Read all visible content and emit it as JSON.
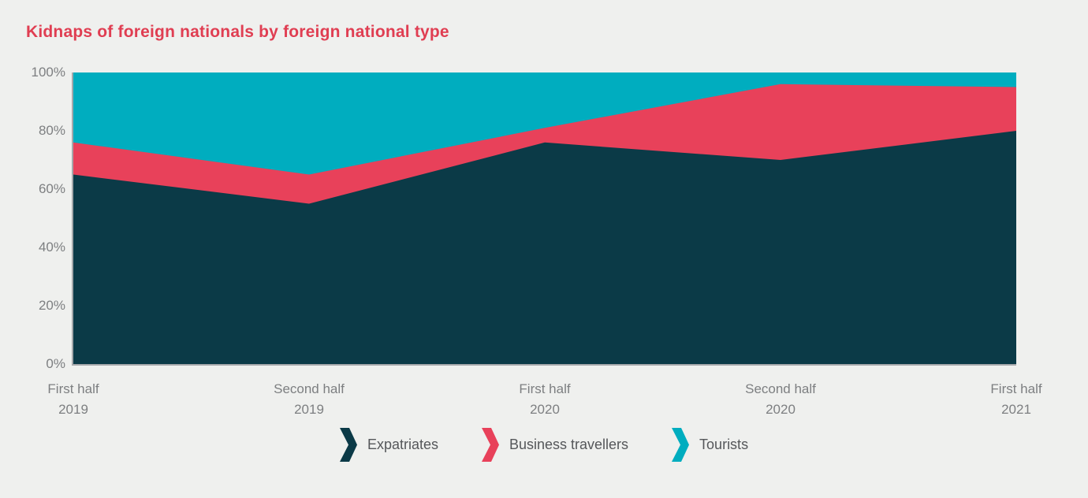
{
  "page": {
    "background": "#eff0ee"
  },
  "title": {
    "text": "Kidnaps of foreign nationals by foreign national type",
    "color": "#e03e52"
  },
  "chart_data": {
    "type": "area",
    "stacked": true,
    "units": "percent",
    "title": "Kidnaps of foreign nationals by foreign national type",
    "categories": [
      "First half 2019",
      "Second half 2019",
      "First half 2020",
      "Second half 2020",
      "First half 2021"
    ],
    "category_lines": [
      [
        "First half",
        "2019"
      ],
      [
        "Second half",
        "2019"
      ],
      [
        "First half",
        "2020"
      ],
      [
        "Second half",
        "2020"
      ],
      [
        "First half",
        "2021"
      ]
    ],
    "series": [
      {
        "name": "Expatriates",
        "color": "#0b3a47",
        "values": [
          65,
          55,
          76,
          70,
          80
        ]
      },
      {
        "name": "Business travellers",
        "color": "#e8415a",
        "values": [
          11,
          10,
          5,
          26,
          15
        ]
      },
      {
        "name": "Tourists",
        "color": "#00adbf",
        "values": [
          24,
          35,
          19,
          4,
          5
        ]
      }
    ],
    "xlabel": "",
    "ylabel": "",
    "y_ticks": [
      "100%",
      "80%",
      "60%",
      "40%",
      "20%",
      "0%"
    ],
    "ylim": [
      0,
      100
    ],
    "grid": false,
    "legend_position": "bottom",
    "axis_color": "#a7a9ac",
    "tick_label_color": "#7d7f81"
  }
}
